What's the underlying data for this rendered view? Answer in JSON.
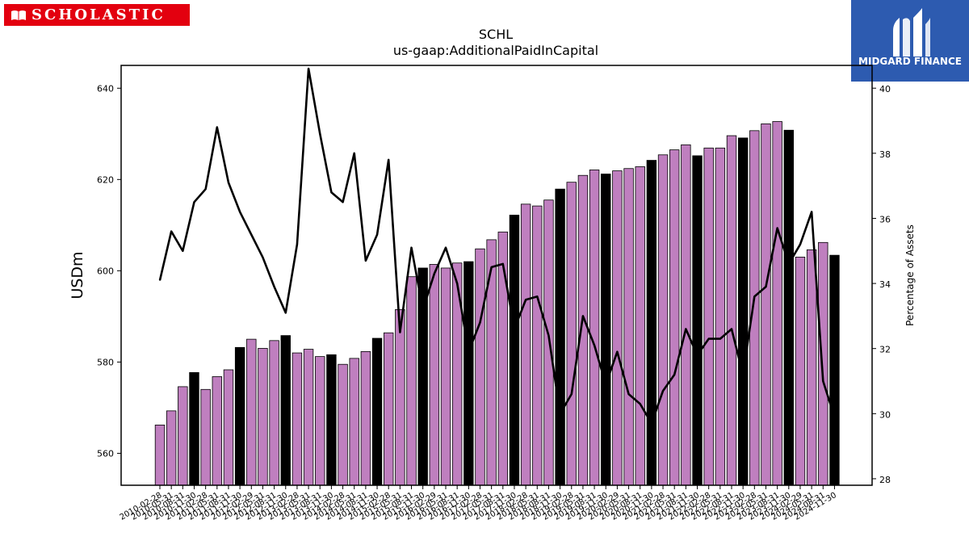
{
  "logos": {
    "left_text": "SCHOLASTIC",
    "right_text": "MIDGARD FINANCE"
  },
  "chart_data": {
    "type": "bar",
    "title": "SCHL",
    "subtitle": "us-gaap:AdditionalPaidInCapital",
    "ylabel": "USDm",
    "y2label": "Percentage of Assets",
    "ylim": [
      553,
      645
    ],
    "y2lim": [
      27.8,
      40.7
    ],
    "yticks": [
      560,
      580,
      600,
      620,
      640
    ],
    "y2ticks": [
      28,
      30,
      32,
      34,
      36,
      38,
      40
    ],
    "legend": "none",
    "grid": false,
    "colors": {
      "bar": "#bf7fbf",
      "bar_highlight": "#000000",
      "line": "#000000"
    },
    "categories": [
      "2010-02-28",
      "2010-05-31",
      "2010-08-31",
      "2010-11-30",
      "2011-02-28",
      "2011-05-31",
      "2011-08-31",
      "2011-11-30",
      "2012-02-29",
      "2012-05-31",
      "2012-08-31",
      "2012-11-30",
      "2013-02-28",
      "2013-05-31",
      "2013-08-31",
      "2013-11-30",
      "2014-02-28",
      "2014-05-31",
      "2014-08-31",
      "2014-11-30",
      "2015-02-28",
      "2015-05-31",
      "2015-08-31",
      "2015-11-30",
      "2016-02-29",
      "2016-05-31",
      "2016-08-31",
      "2016-11-30",
      "2017-02-28",
      "2017-05-31",
      "2017-08-31",
      "2017-11-30",
      "2018-02-28",
      "2018-05-31",
      "2018-08-31",
      "2018-11-30",
      "2019-02-28",
      "2019-05-31",
      "2019-08-31",
      "2019-11-30",
      "2020-02-29",
      "2020-05-31",
      "2020-08-31",
      "2020-11-30",
      "2021-02-28",
      "2021-05-31",
      "2021-08-31",
      "2021-11-30",
      "2022-02-28",
      "2022-05-31",
      "2022-08-31",
      "2022-11-30",
      "2023-02-28",
      "2023-05-31",
      "2023-08-31",
      "2023-11-30",
      "2024-02-29",
      "2024-05-31",
      "2024-08-31",
      "2024-11-30"
    ],
    "tick_labels": [
      "2010-02-28",
      "2010-05-31",
      "2010-08-31",
      "2010-11-30",
      "2011-02-28",
      "2011-05-31",
      "2011-08-31",
      "2011-11-30",
      "2012-02-29",
      "2012-05-31",
      "2012-08-31",
      "2012-11-30",
      "2013-02-28",
      "2013-05-31",
      "2013-08-31",
      "2013-11-30",
      "2014-02-28",
      "2014-05-31",
      "2014-08-31",
      "2014-11-30",
      "2015-02-28",
      "2015-05-31",
      "2015-08-31",
      "2015-11-30",
      "2016-02-29",
      "2016-05-31",
      "2016-08-31",
      "2016-11-30",
      "2017-02-28",
      "2017-05-31",
      "2017-08-31",
      "2017-11-30",
      "2018-02-28",
      "2018-05-31",
      "2018-08-31",
      "2018-11-30",
      "2019-02-28",
      "2019-05-31",
      "2019-08-31",
      "2019-11-30",
      "2020-02-29",
      "2020-05-31",
      "2020-08-31",
      "2020-11-30",
      "2021-02-28",
      "2021-05-31",
      "2021-08-31",
      "2021-11-30",
      "2022-02-28",
      "2022-05-31",
      "2022-08-31",
      "2022-11-30",
      "2023-02-28",
      "2023-05-31",
      "2023-08-31",
      "2023-11-30",
      "2024-02-29",
      "2024-05-31",
      "2024-08-31",
      "2024-11-30"
    ],
    "series": [
      {
        "type": "bar",
        "axis": "left",
        "values": [
          566.2,
          569.3,
          574.6,
          577.7,
          574.0,
          576.8,
          578.3,
          583.2,
          585.0,
          583.0,
          584.7,
          585.8,
          582.0,
          582.8,
          581.2,
          581.6,
          579.5,
          580.8,
          582.3,
          585.2,
          586.4,
          591.5,
          598.7,
          600.6,
          601.4,
          600.6,
          601.7,
          602.0,
          604.8,
          606.8,
          608.5,
          612.2,
          614.6,
          614.2,
          615.5,
          617.9,
          619.4,
          620.9,
          622.1,
          621.2,
          621.9,
          622.4,
          622.8,
          624.2,
          625.4,
          626.5,
          627.6,
          625.2,
          626.9,
          626.9,
          629.6,
          629.1,
          630.7,
          632.2,
          632.7,
          630.8,
          603.0,
          604.6,
          606.2,
          603.4
        ],
        "highlight": [
          false,
          false,
          false,
          true,
          false,
          false,
          false,
          true,
          false,
          false,
          false,
          true,
          false,
          false,
          false,
          true,
          false,
          false,
          false,
          true,
          false,
          false,
          false,
          true,
          false,
          false,
          false,
          true,
          false,
          false,
          false,
          true,
          false,
          false,
          false,
          true,
          false,
          false,
          false,
          true,
          false,
          false,
          false,
          true,
          false,
          false,
          false,
          true,
          false,
          false,
          false,
          true,
          false,
          false,
          false,
          true,
          false,
          false,
          false,
          true
        ]
      },
      {
        "type": "line",
        "axis": "right",
        "values": [
          34.1,
          35.6,
          35.0,
          36.5,
          36.9,
          38.8,
          37.1,
          36.2,
          35.5,
          34.8,
          33.9,
          33.1,
          35.2,
          40.6,
          38.6,
          36.8,
          36.5,
          38.0,
          34.7,
          35.5,
          37.8,
          32.5,
          35.1,
          33.2,
          34.3,
          35.1,
          34.0,
          31.9,
          32.8,
          34.5,
          34.6,
          32.6,
          33.5,
          33.6,
          32.4,
          30.0,
          30.6,
          33.0,
          32.1,
          30.9,
          31.9,
          30.6,
          30.3,
          29.7,
          30.7,
          31.2,
          32.6,
          31.8,
          32.3,
          32.3,
          32.6,
          31.2,
          33.6,
          33.9,
          35.7,
          34.6,
          35.2,
          36.2,
          31.0,
          29.9
        ]
      }
    ]
  }
}
